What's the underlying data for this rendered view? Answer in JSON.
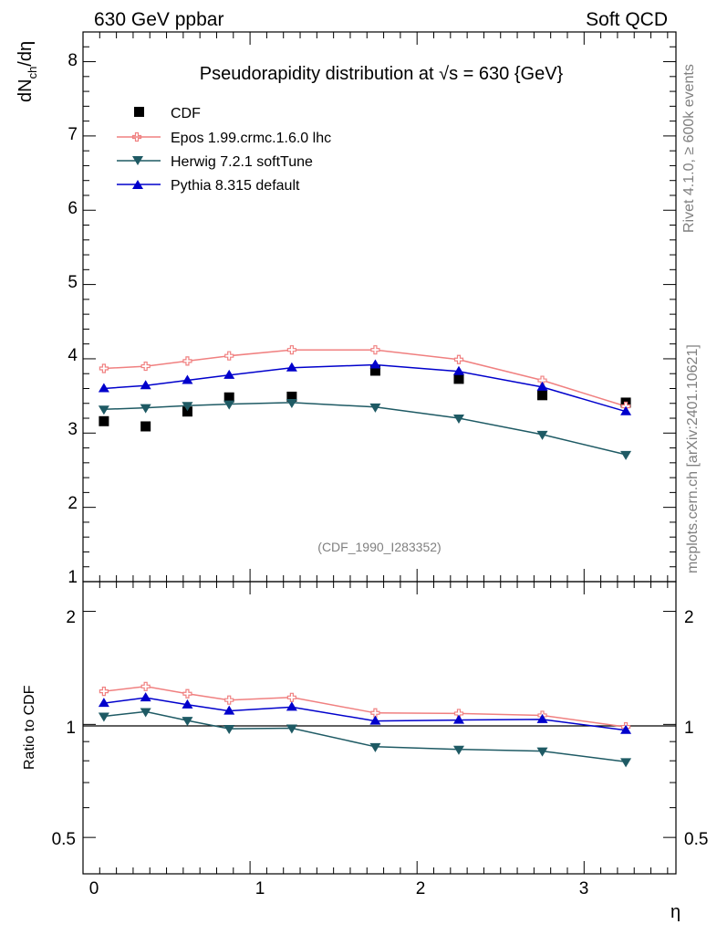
{
  "header": {
    "left": "630 GeV ppbar",
    "right": "Soft QCD"
  },
  "side": {
    "top": "Rivet 4.1.0, ≥ 600k events",
    "bottom": "mcplots.cern.ch [arXiv:2401.10621]"
  },
  "colors": {
    "CDF": "#000000",
    "Epos": "#f08080",
    "Herwig": "#1e5a64",
    "Pythia": "#0000cc"
  },
  "chart_data": [
    {
      "type": "line",
      "panel": "main",
      "title": "Pseudorapidity distribution at √s = 630 {GeV}",
      "ylabel": "dN_ch/dη",
      "ylim": [
        1,
        8.4
      ],
      "yticks": [
        "1",
        "2",
        "3",
        "4",
        "5",
        "6",
        "7",
        "8"
      ],
      "watermark": "(CDF_1990_I283352)",
      "x": [
        0.125,
        0.375,
        0.625,
        0.875,
        1.25,
        1.75,
        2.25,
        2.75,
        3.25
      ],
      "series": [
        {
          "name": "CDF",
          "marker": "square",
          "values": [
            3.16,
            3.09,
            3.29,
            3.48,
            3.49,
            3.84,
            3.73,
            3.51,
            3.41
          ]
        },
        {
          "name": "Epos 1.99.crmc.1.6.0 lhc",
          "marker": "cross",
          "values": [
            3.87,
            3.9,
            3.97,
            4.04,
            4.12,
            4.12,
            3.99,
            3.71,
            3.36
          ]
        },
        {
          "name": "Herwig 7.2.1 softTune",
          "marker": "triangle-down",
          "values": [
            3.32,
            3.34,
            3.37,
            3.39,
            3.41,
            3.35,
            3.2,
            2.98,
            2.71
          ]
        },
        {
          "name": "Pythia 8.315 default",
          "marker": "triangle-up",
          "values": [
            3.6,
            3.64,
            3.71,
            3.78,
            3.88,
            3.92,
            3.83,
            3.62,
            3.29
          ]
        }
      ]
    },
    {
      "type": "line",
      "panel": "ratio",
      "ylabel": "Ratio to CDF",
      "xlabel": "η",
      "ylim": [
        0.4,
        2.4
      ],
      "ylog": true,
      "xlim": [
        0,
        3.55
      ],
      "xticks": [
        "0",
        "1",
        "2",
        "3"
      ],
      "yticks": [
        "0.5",
        "1",
        "2"
      ],
      "x": [
        0.125,
        0.375,
        0.625,
        0.875,
        1.25,
        1.75,
        2.25,
        2.75,
        3.25
      ],
      "series": [
        {
          "name": "Epos 1.99.crmc.1.6.0 lhc",
          "marker": "cross",
          "values": [
            1.225,
            1.262,
            1.207,
            1.161,
            1.18,
            1.073,
            1.069,
            1.057,
            0.985
          ]
        },
        {
          "name": "Herwig 7.2.1 softTune",
          "marker": "triangle-down",
          "values": [
            1.051,
            1.081,
            1.024,
            0.974,
            0.977,
            0.872,
            0.858,
            0.849,
            0.795
          ]
        },
        {
          "name": "Pythia 8.315 default",
          "marker": "triangle-up",
          "values": [
            1.139,
            1.178,
            1.128,
            1.086,
            1.112,
            1.021,
            1.027,
            1.031,
            0.965
          ]
        }
      ]
    }
  ]
}
